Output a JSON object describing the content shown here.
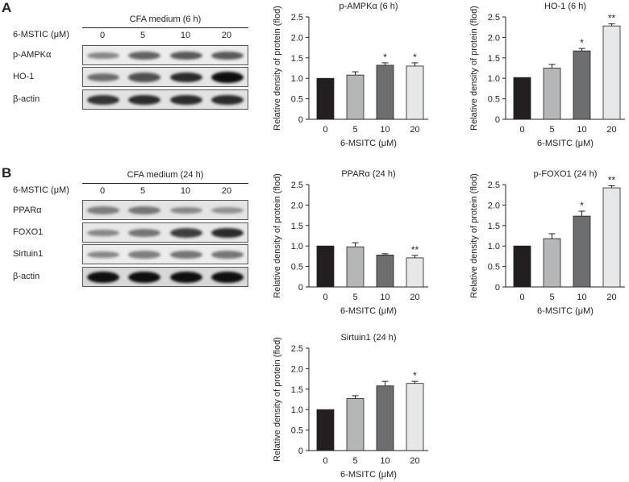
{
  "panels": [
    {
      "letter": "A",
      "blot": {
        "header": "CFA medium (6 h)",
        "conc_label": "6-MSTIC (μM)",
        "concentrations": [
          "0",
          "5",
          "10",
          "20"
        ],
        "rows": [
          {
            "label": "p-AMPKα",
            "bands": [
              0.35,
              0.55,
              0.6,
              0.6
            ]
          },
          {
            "label": "HO-1",
            "bands": [
              0.5,
              0.65,
              0.85,
              1.0
            ]
          },
          {
            "label": "β-actin",
            "bands": [
              0.8,
              0.85,
              0.85,
              0.85
            ]
          }
        ]
      }
    },
    {
      "letter": "B",
      "blot": {
        "header": "CFA medium (24 h)",
        "conc_label": "6-MSTIC (μM)",
        "concentrations": [
          "0",
          "5",
          "10",
          "20"
        ],
        "rows": [
          {
            "label": "PPARα",
            "bands": [
              0.4,
              0.45,
              0.35,
              0.3
            ]
          },
          {
            "label": "FOXO1",
            "bands": [
              0.35,
              0.45,
              0.75,
              0.85
            ]
          },
          {
            "label": "Sirtuin1",
            "bands": [
              0.35,
              0.4,
              0.45,
              0.45
            ]
          },
          {
            "label": "β-actin",
            "bands": [
              1.0,
              1.0,
              1.0,
              1.0
            ]
          }
        ]
      }
    }
  ],
  "bar_colors": [
    "#231f20",
    "#b4b6b8",
    "#6d6e70",
    "#e6e7e8"
  ],
  "chart_data": [
    {
      "type": "bar",
      "title": "p-AMPKα (6 h)",
      "categories": [
        "0",
        "5",
        "10",
        "20"
      ],
      "values": [
        1.0,
        1.08,
        1.32,
        1.3
      ],
      "errors": [
        0,
        0.08,
        0.06,
        0.08
      ],
      "significance": [
        "",
        "",
        "*",
        "*"
      ],
      "xlabel": "6-MSITC (μM)",
      "ylabel": "Relative density of protein (flod)",
      "ylim": [
        0,
        2.5
      ],
      "yticks": [
        "0",
        "0.5",
        "1.0",
        "1.5",
        "2.0",
        "2.5"
      ]
    },
    {
      "type": "bar",
      "title": "HO-1 (6 h)",
      "categories": [
        "0",
        "5",
        "10",
        "20"
      ],
      "values": [
        1.02,
        1.25,
        1.67,
        2.28
      ],
      "errors": [
        0,
        0.09,
        0.06,
        0.05
      ],
      "significance": [
        "",
        "",
        "*",
        "**"
      ],
      "xlabel": "6-MSITC (μM)",
      "ylabel": "Relative density of protein (flod)",
      "ylim": [
        0,
        2.5
      ],
      "yticks": [
        "0",
        "0.5",
        "1.0",
        "1.5",
        "2.0",
        "2.5"
      ]
    },
    {
      "type": "bar",
      "title": "PPARα (24 h)",
      "categories": [
        "0",
        "5",
        "10",
        "20"
      ],
      "values": [
        1.0,
        0.98,
        0.78,
        0.71
      ],
      "errors": [
        0,
        0.1,
        0.03,
        0.06
      ],
      "significance": [
        "",
        "",
        "",
        "**"
      ],
      "xlabel": "6-MSITC (μM)",
      "ylabel": "Relative density of protein (flod)",
      "ylim": [
        0,
        2.5
      ],
      "yticks": [
        "0",
        "0.5",
        "1.0",
        "1.5",
        "2.0",
        "2.5"
      ]
    },
    {
      "type": "bar",
      "title": "p-FOXO1 (24 h)",
      "categories": [
        "0",
        "5",
        "10",
        "20"
      ],
      "values": [
        1.0,
        1.18,
        1.73,
        2.42
      ],
      "errors": [
        0,
        0.12,
        0.12,
        0.05
      ],
      "significance": [
        "",
        "",
        "*",
        "**"
      ],
      "xlabel": "6-MSITC (μM)",
      "ylabel": "Relative density of protein (flod)",
      "ylim": [
        0,
        2.5
      ],
      "yticks": [
        "0",
        "0.5",
        "1.0",
        "1.5",
        "2.0",
        "2.5"
      ]
    },
    {
      "type": "bar",
      "title": "Sirtuin1 (24 h)",
      "categories": [
        "0",
        "5",
        "10",
        "20"
      ],
      "values": [
        1.0,
        1.27,
        1.58,
        1.64
      ],
      "errors": [
        0,
        0.07,
        0.11,
        0.05
      ],
      "significance": [
        "",
        "",
        "",
        "*"
      ],
      "xlabel": "6-MSITC (μM)",
      "ylabel": "Relative density of protein (flod)",
      "ylim": [
        0,
        2.5
      ],
      "yticks": [
        "0",
        "0.5",
        "1.0",
        "1.5",
        "2.0",
        "2.5"
      ]
    }
  ]
}
